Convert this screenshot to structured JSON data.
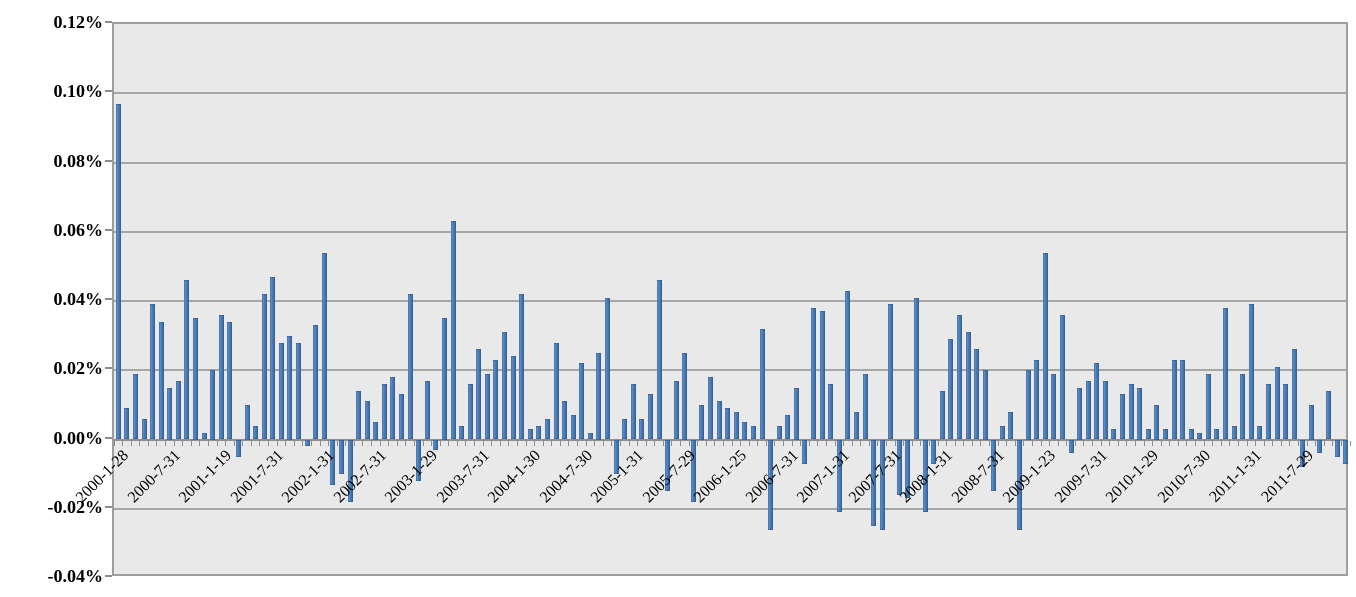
{
  "chart_data": {
    "type": "bar",
    "title": "",
    "xlabel": "",
    "ylabel": "",
    "unit": "percent",
    "ylim": [
      -0.04,
      0.12
    ],
    "y_tick_step": 0.02,
    "gridlines": true,
    "legend_visible": false,
    "y_ticks": [
      {
        "value": 0.12,
        "label": "0.12%"
      },
      {
        "value": 0.1,
        "label": "0.10%"
      },
      {
        "value": 0.08,
        "label": "0.08%"
      },
      {
        "value": 0.06,
        "label": "0.06%"
      },
      {
        "value": 0.04,
        "label": "0.04%"
      },
      {
        "value": 0.02,
        "label": "0.02%"
      },
      {
        "value": 0.0,
        "label": "0.00%"
      },
      {
        "value": -0.02,
        "label": "-0.02%"
      },
      {
        "value": -0.04,
        "label": "-0.04%"
      }
    ],
    "x_tick_interval": 6,
    "x_tick_labels": [
      "2000-1-28",
      "2000-7-31",
      "2001-1-19",
      "2001-7-31",
      "2002-1-31",
      "2002-7-31",
      "2003-1-29",
      "2003-7-31",
      "2004-1-30",
      "2004-7-30",
      "2005-1-31",
      "2005-7-29",
      "2006-1-25",
      "2006-7-31",
      "2007-1-31",
      "2007-7-31",
      "2008-1-31",
      "2008-7-31",
      "2009-1-23",
      "2009-7-31",
      "2010-1-29",
      "2010-7-30",
      "2011-1-31",
      "2011-7-29"
    ],
    "n_bars": 144,
    "values": [
      0.097,
      0.009,
      0.019,
      0.006,
      0.039,
      0.034,
      0.015,
      0.017,
      0.046,
      0.035,
      0.002,
      0.02,
      0.036,
      0.034,
      -0.005,
      0.01,
      0.004,
      0.042,
      0.047,
      0.028,
      0.03,
      0.028,
      -0.002,
      0.033,
      0.054,
      -0.013,
      -0.01,
      -0.018,
      0.014,
      0.011,
      0.005,
      0.016,
      0.018,
      0.013,
      0.042,
      -0.012,
      0.017,
      -0.003,
      0.035,
      0.063,
      0.004,
      0.016,
      0.026,
      0.019,
      0.023,
      0.031,
      0.024,
      0.042,
      0.003,
      0.004,
      0.006,
      0.028,
      0.011,
      0.007,
      0.022,
      0.002,
      0.025,
      0.041,
      -0.01,
      0.006,
      0.016,
      0.006,
      0.013,
      0.046,
      -0.015,
      0.017,
      0.025,
      -0.018,
      0.01,
      0.018,
      0.011,
      0.009,
      0.008,
      0.005,
      0.004,
      0.032,
      -0.026,
      0.004,
      0.007,
      0.015,
      -0.007,
      0.038,
      0.037,
      0.016,
      -0.021,
      0.043,
      0.008,
      0.019,
      -0.025,
      -0.026,
      0.039,
      -0.016,
      -0.017,
      0.041,
      -0.021,
      -0.007,
      0.014,
      0.029,
      0.036,
      0.031,
      0.026,
      0.02,
      -0.015,
      0.004,
      0.008,
      -0.026,
      0.02,
      0.023,
      0.054,
      0.019,
      0.036,
      -0.004,
      0.015,
      0.017,
      0.022,
      0.017,
      0.003,
      0.013,
      0.016,
      0.015,
      0.003,
      0.01,
      0.003,
      0.023,
      0.023,
      0.003,
      0.002,
      0.019,
      0.003,
      0.038,
      0.004,
      0.019,
      0.039,
      0.004,
      0.016,
      0.021,
      0.016,
      0.026,
      -0.008,
      0.01,
      -0.004,
      0.014,
      -0.005,
      -0.007
    ],
    "colors": {
      "bar": "#4a7ebb",
      "bar_highlight": "#8aaad2",
      "bar_shadow": "#3a659e",
      "bar_edge": "#2f5a8f",
      "plot_bg": "#e9e9e9",
      "gridline": "#a6a6a6",
      "axis": "#8c8c8c",
      "text": "#000000",
      "background": "#ffffff"
    }
  }
}
